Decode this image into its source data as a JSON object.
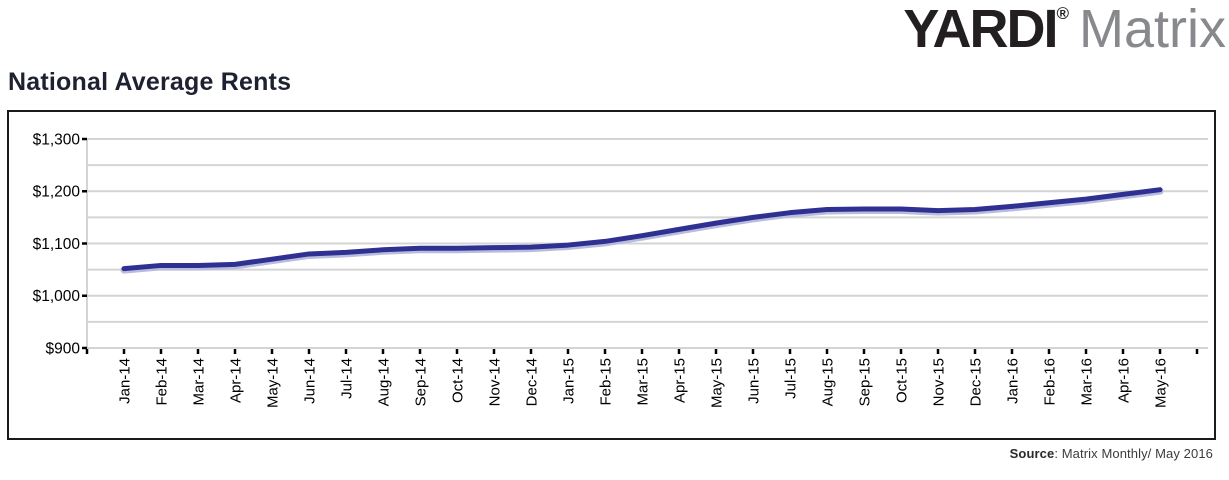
{
  "logo": {
    "brand": "YARDI",
    "registered": "®",
    "product": "Matrix"
  },
  "page_title": "National Average Rents",
  "source": {
    "label": "Source",
    "text": ": Matrix Monthly/ May 2016"
  },
  "colors": {
    "line": "#2e3192",
    "line_halo": "#b9bcdc",
    "grid": "#d4d4d4",
    "axis_tick": "#000000",
    "axis_text": "#000000",
    "box_border": "#1a1a1a"
  },
  "chart_data": {
    "type": "line",
    "title": "National Average Rents",
    "xlabel": "",
    "ylabel": "",
    "x": [
      "Jan-14",
      "Feb-14",
      "Mar-14",
      "Apr-14",
      "May-14",
      "Jun-14",
      "Jul-14",
      "Aug-14",
      "Sep-14",
      "Oct-14",
      "Nov-14",
      "Dec-14",
      "Jan-15",
      "Feb-15",
      "Mar-15",
      "Apr-15",
      "May-15",
      "Jun-15",
      "Jul-15",
      "Aug-15",
      "Sep-15",
      "Oct-15",
      "Nov-15",
      "Dec-15",
      "Jan-16",
      "Feb-16",
      "Mar-16",
      "Apr-16",
      "May-16"
    ],
    "series": [
      {
        "name": "National Average Rent",
        "values": [
          1052,
          1058,
          1058,
          1060,
          1070,
          1080,
          1083,
          1088,
          1091,
          1091,
          1092,
          1093,
          1097,
          1104,
          1115,
          1127,
          1139,
          1150,
          1159,
          1165,
          1166,
          1166,
          1163,
          1165,
          1171,
          1178,
          1185,
          1194,
          1203
        ]
      }
    ],
    "ylim": [
      900,
      1300
    ],
    "ytick_step": 100,
    "grid_step": 50,
    "ytick_labels": [
      "$900",
      "$1,000",
      "$1,100",
      "$1,200",
      "$1,300"
    ],
    "grid": true,
    "legend_position": "none",
    "x_label_rotation": -90
  }
}
